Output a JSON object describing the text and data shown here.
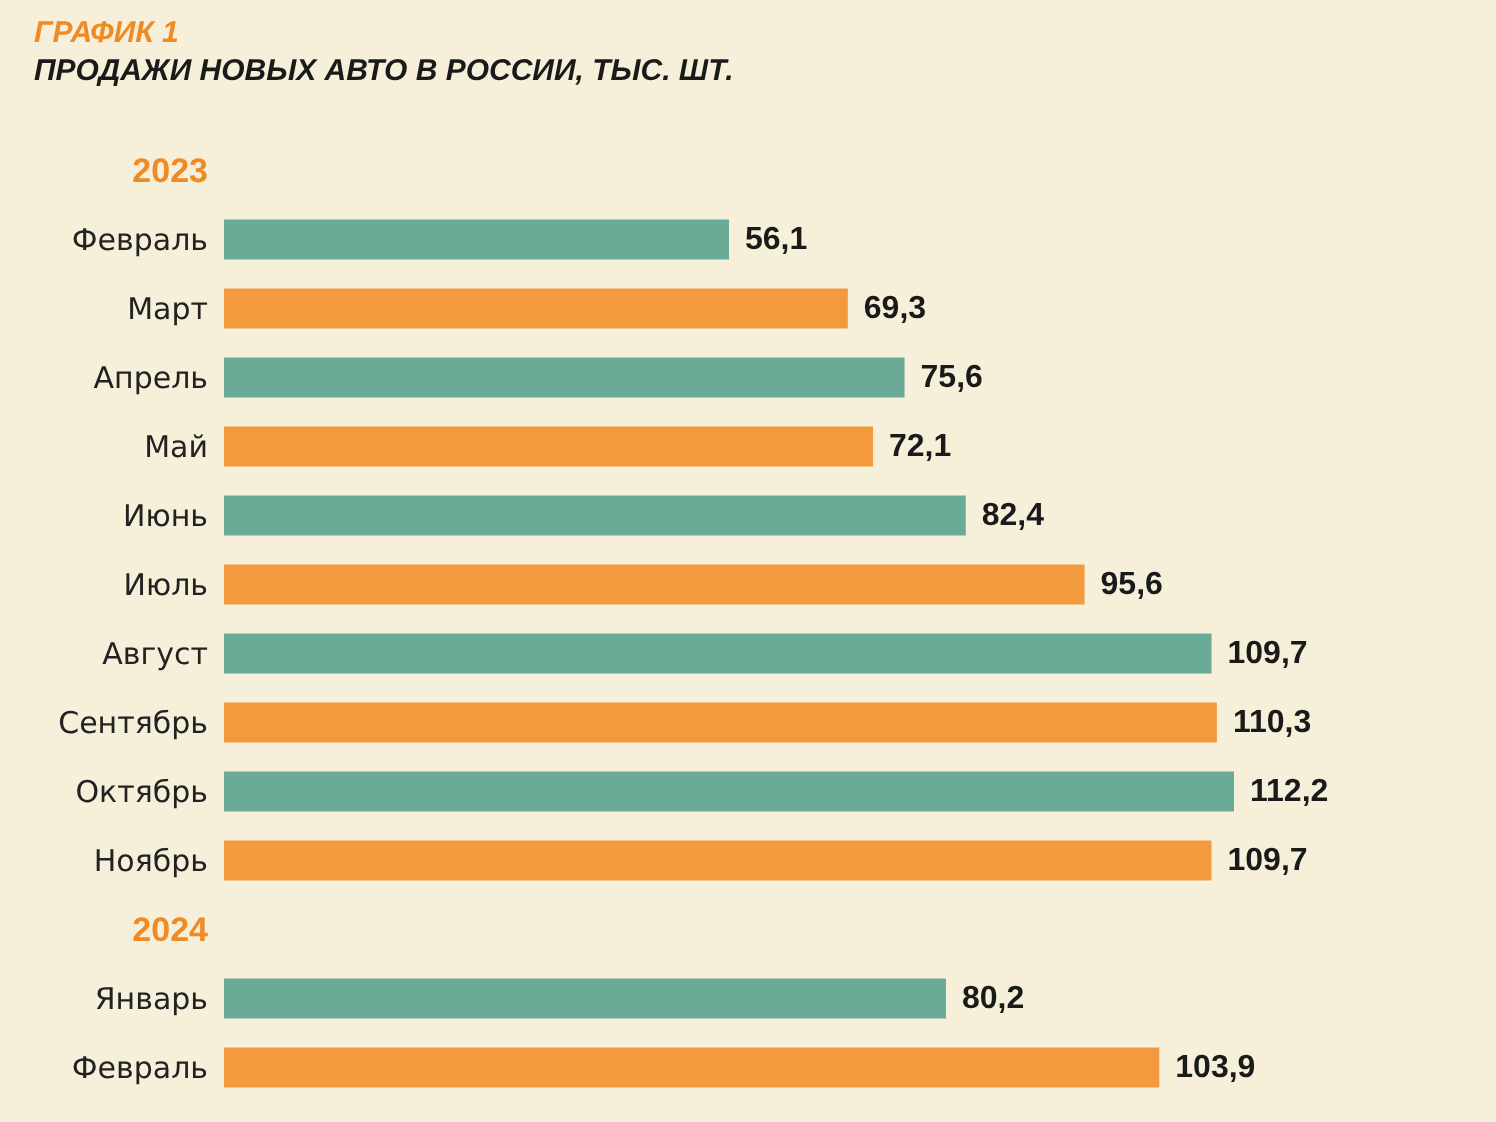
{
  "chart_data": {
    "type": "bar",
    "orientation": "horizontal",
    "title": "ГРАФИК 1",
    "subtitle": "ПРОДАЖИ НОВЫХ АВТО В РОССИИ, ТЫС. ШТ.",
    "annotations": [
      "2023",
      "2024"
    ],
    "categories": [
      "Февраль",
      "Март",
      "Апрель",
      "Май",
      "Июнь",
      "Июль",
      "Август",
      "Сентябрь",
      "Октябрь",
      "Ноябрь",
      "Январь",
      "Февраль"
    ],
    "values": [
      56.1,
      69.3,
      75.6,
      72.1,
      82.4,
      95.6,
      109.7,
      110.3,
      112.2,
      109.7,
      80.2,
      103.9
    ],
    "colors": [
      "#6aab98",
      "#f49a3e",
      "#6aab98",
      "#f49a3e",
      "#6aab98",
      "#f49a3e",
      "#6aab98",
      "#f49a3e",
      "#6aab98",
      "#f49a3e",
      "#6aab98",
      "#f49a3e"
    ],
    "value_labels": [
      "56,1",
      "69,3",
      "75,6",
      "72,1",
      "82,4",
      "95,6",
      "109,7",
      "110,3",
      "112,2",
      "109,7",
      "80,2",
      "103,9"
    ]
  }
}
